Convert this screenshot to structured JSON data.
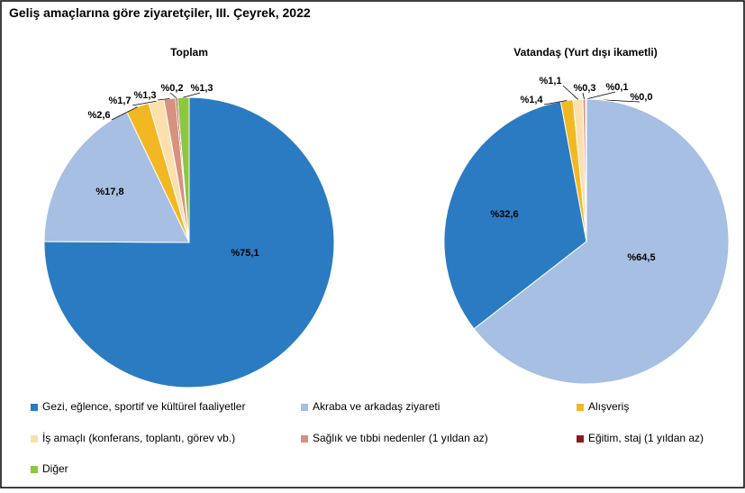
{
  "title": "Geliş amaçlarına göre ziyaretçiler, III. Çeyrek, 2022",
  "chart_data": [
    {
      "type": "pie",
      "title": "Toplam",
      "categories": [
        "Gezi, eğlence, sportif ve kültürel faaliyetler",
        "Akraba ve arkadaş ziyareti",
        "Alışveriş",
        "İş amaçlı (konferans, toplantı, görev vb.)",
        "Sağlık ve tıbbi nedenler (1 yıldan az)",
        "Eğitim, staj (1 yıldan az)",
        "Diğer"
      ],
      "values": [
        75.1,
        17.8,
        2.6,
        1.7,
        1.3,
        0.2,
        1.3
      ],
      "value_labels": [
        "%75,1",
        "%17,8",
        "%2,6",
        "%1,7",
        "%1,3",
        "%0,2",
        "%1,3"
      ],
      "colors": [
        "#2b7bc2",
        "#a6bfe2",
        "#f2b824",
        "#fbe0ae",
        "#d8917f",
        "#8b1a1a",
        "#8dc63f"
      ]
    },
    {
      "type": "pie",
      "title": "Vatandaş (Yurt dışı ikametli)",
      "categories": [
        "Gezi, eğlence, sportif ve kültürel faaliyetler",
        "Akraba ve arkadaş ziyareti",
        "Alışveriş",
        "İş amaçlı (konferans, toplantı, görev vb.)",
        "Sağlık ve tıbbi nedenler (1 yıldan az)",
        "Eğitim, staj (1 yıldan az)",
        "Diğer"
      ],
      "values": [
        32.6,
        64.5,
        1.4,
        1.1,
        0.3,
        0.1,
        0.0
      ],
      "value_labels": [
        "%32,6",
        "%64,5",
        "%1,4",
        "%1,1",
        "%0,3",
        "%0,1",
        "%0,0"
      ],
      "colors": [
        "#2b7bc2",
        "#a6bfe2",
        "#f2b824",
        "#fbe0ae",
        "#d8917f",
        "#8b1a1a",
        "#8dc63f"
      ]
    }
  ]
}
